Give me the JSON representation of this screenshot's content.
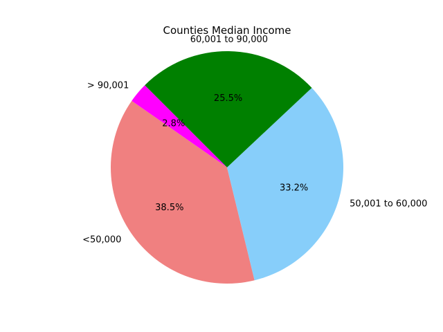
{
  "chart_data": {
    "type": "pie",
    "title": "Counties Median Income",
    "start_angle_deg": 135,
    "direction": "counterclockwise",
    "slices": [
      {
        "label": "> 90,001",
        "percent": 2.8,
        "color": "#ff00ff",
        "percent_label": "2.8%"
      },
      {
        "label": "<50,000",
        "percent": 38.5,
        "color": "#f08080",
        "percent_label": "38.5%"
      },
      {
        "label": "50,001 to 60,000",
        "percent": 33.2,
        "color": "#87cefa",
        "percent_label": "33.2%"
      },
      {
        "label": "60,001 to 90,000",
        "percent": 25.5,
        "color": "#008000",
        "percent_label": "25.5%"
      }
    ]
  }
}
